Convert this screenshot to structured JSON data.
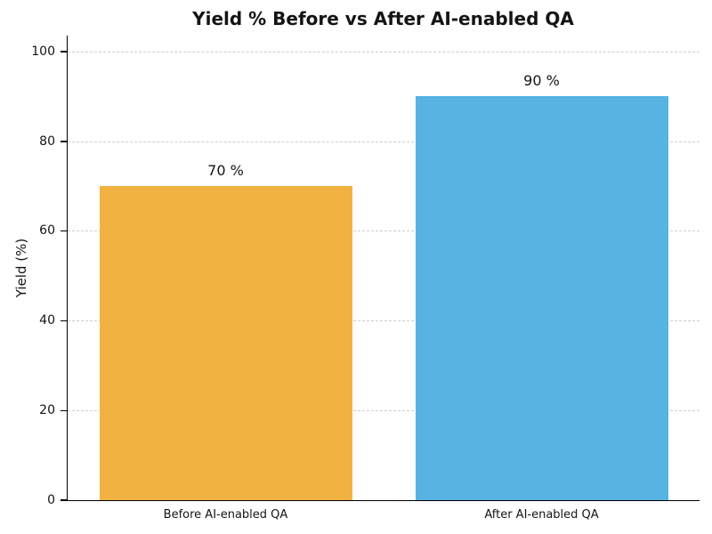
{
  "chart_data": {
    "type": "bar",
    "title": "Yield % Before vs After AI-enabled QA",
    "xlabel": "",
    "ylabel": "Yield (%)",
    "categories": [
      "Before AI-enabled QA",
      "After AI-enabled QA"
    ],
    "values": [
      70,
      90
    ],
    "value_labels": [
      "70 %",
      "90 %"
    ],
    "bar_colors": [
      "#F2B241",
      "#56B3E2"
    ],
    "ylim": [
      0,
      103.5
    ],
    "yticks": [
      0,
      20,
      40,
      60,
      80,
      100
    ],
    "grid": "horizontal-dashed",
    "gridline_color": "#cdcdcd",
    "legend": "none"
  }
}
